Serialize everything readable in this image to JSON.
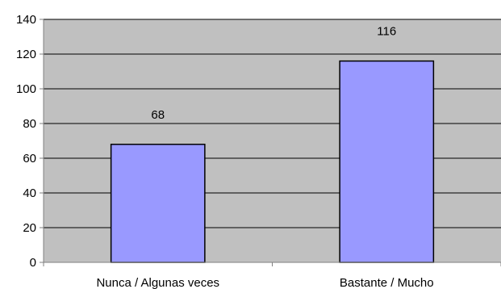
{
  "chart_data": {
    "type": "bar",
    "categories": [
      "Nunca / Algunas veces",
      "Bastante / Mucho"
    ],
    "values": [
      68,
      116
    ],
    "data_labels": [
      "68",
      "116"
    ],
    "ylim": [
      0,
      140
    ],
    "yticks": [
      0,
      20,
      40,
      60,
      80,
      100,
      120,
      140
    ],
    "grid": true,
    "legend": "none",
    "colors": {
      "plot_background": "#c0c0c0",
      "bar_fill": "#9999ff",
      "bar_stroke": "#000000",
      "gridline": "#000000",
      "axis": "#808080"
    }
  }
}
